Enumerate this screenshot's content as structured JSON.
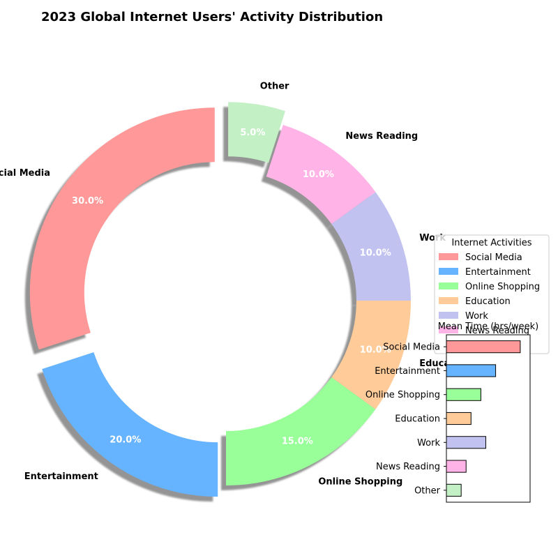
{
  "chart_data": [
    {
      "type": "pie",
      "subtype": "donut",
      "title": "2023 Global Internet Users' Activity Distribution",
      "categories": [
        "Social Media",
        "Entertainment",
        "Online Shopping",
        "Education",
        "Work",
        "News Reading",
        "Other"
      ],
      "values": [
        30,
        20,
        15,
        10,
        10,
        10,
        5
      ],
      "value_labels": [
        "30.0%",
        "20.0%",
        "15.0%",
        "10.0%",
        "10.0%",
        "10.0%",
        "5.0%"
      ],
      "colors": [
        "#ff9999",
        "#66b3ff",
        "#99ff99",
        "#ffcc99",
        "#c2c2f0",
        "#ffb3e6",
        "#c4f0c5"
      ],
      "exploded": [
        "Social Media",
        "Entertainment",
        "Other"
      ],
      "start_angle_deg": 90,
      "direction": "counterclockwise",
      "shadow": true,
      "legend": {
        "title": "Internet Activities",
        "placement": "right",
        "entries": [
          "Social Media",
          "Entertainment",
          "Online Shopping",
          "Education",
          "Work",
          "News Reading"
        ]
      }
    },
    {
      "type": "bar",
      "orientation": "horizontal",
      "title": "Mean Time (hrs/week)",
      "categories": [
        "Social Media",
        "Entertainment",
        "Online Shopping",
        "Education",
        "Work",
        "News Reading",
        "Other"
      ],
      "values": [
        15,
        10,
        7,
        5,
        8,
        4,
        3
      ],
      "colors": [
        "#ff9999",
        "#66b3ff",
        "#99ff99",
        "#ffcc99",
        "#c2c2f0",
        "#ffb3e6",
        "#c4f0c5"
      ],
      "xlim": [
        0,
        17
      ]
    }
  ]
}
